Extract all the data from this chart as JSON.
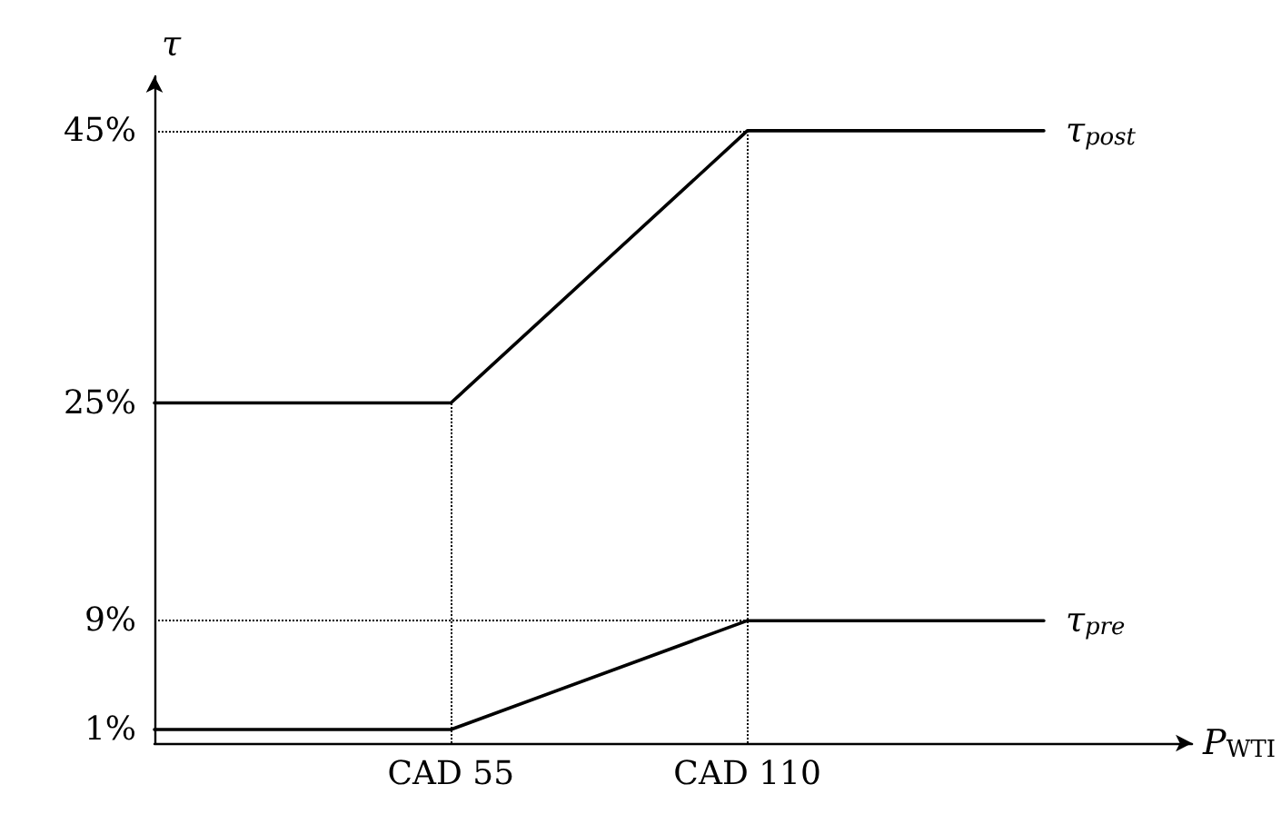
{
  "chart_data": {
    "type": "line",
    "xlabel": "P$_{WTI}$",
    "ylabel": "τ",
    "categories": [
      null,
      "CAD 55",
      "CAD 110",
      null
    ],
    "series": [
      {
        "name": "τ$_{post}$",
        "color": "#000000",
        "values": [
          25,
          25,
          45,
          45
        ]
      },
      {
        "name": "τ$_{pre}$",
        "color": "#000000",
        "values": [
          1,
          1,
          9,
          9
        ]
      }
    ],
    "ylim": [
      0,
      49
    ],
    "yticks": [
      {
        "value": 1,
        "label": "1%"
      },
      {
        "value": 9,
        "label": "9%"
      },
      {
        "value": 25,
        "label": "25%"
      },
      {
        "value": 45,
        "label": "45%"
      }
    ],
    "ref_lines": [
      {
        "axis": "y",
        "value": 45,
        "color": "#000000",
        "line_style": "dotted"
      },
      {
        "axis": "y",
        "value": 9,
        "color": "#000000",
        "line_style": "dotted"
      },
      {
        "axis": "x",
        "value": "CAD 55",
        "color": "#000000",
        "line_style": "dotted"
      },
      {
        "axis": "x",
        "value": "CAD 110",
        "color": "#000000",
        "line_style": "dotted"
      }
    ],
    "grid": false,
    "legend": false,
    "marker": "none",
    "line_style": "solid"
  }
}
